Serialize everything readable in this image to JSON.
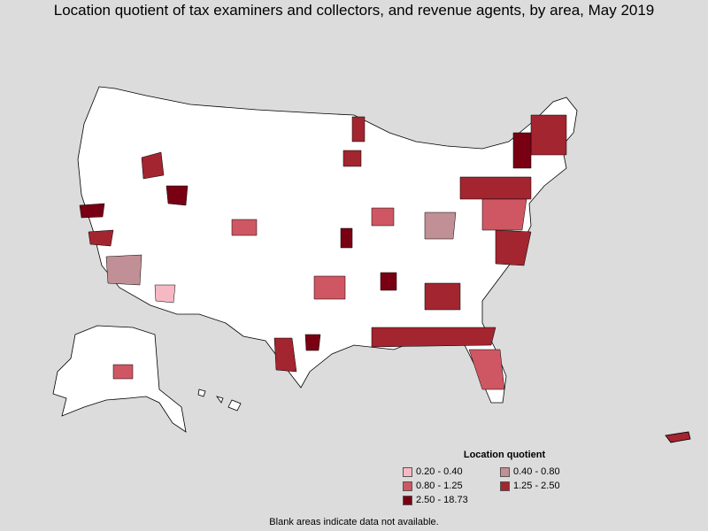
{
  "title": "Location quotient of tax examiners and collectors, and revenue agents, by area, May 2019",
  "legend": {
    "title": "Location quotient",
    "items": [
      {
        "label": "0.20 - 0.40",
        "color": "#f6b9c3"
      },
      {
        "label": "0.40 - 0.80",
        "color": "#c09096"
      },
      {
        "label": "0.80 - 1.25",
        "color": "#cf5763"
      },
      {
        "label": "1.25 - 2.50",
        "color": "#a3252f"
      },
      {
        "label": "2.50 - 18.73",
        "color": "#780012"
      }
    ]
  },
  "footnote": "Blank areas indicate data not available.",
  "colors": {
    "background": "#dcdcdc",
    "no_data": "#ffffff",
    "border": "#000000"
  }
}
